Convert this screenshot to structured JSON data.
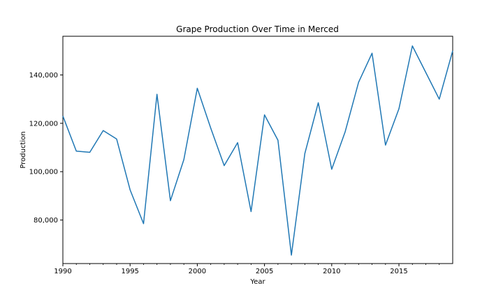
{
  "chart_data": {
    "type": "line",
    "title": "Grape Production Over Time in Merced",
    "xlabel": "Year",
    "ylabel": "Production",
    "xlim": [
      1990,
      2019
    ],
    "ylim": [
      62000,
      156000
    ],
    "x_ticks": [
      1990,
      1995,
      2000,
      2005,
      2010,
      2015
    ],
    "x_tick_labels": [
      "1990",
      "1995",
      "2000",
      "2005",
      "2010",
      "2015"
    ],
    "y_ticks": [
      80000,
      100000,
      120000,
      140000
    ],
    "y_tick_labels": [
      "80,000",
      "100,000",
      "120,000",
      "140,000"
    ],
    "grid": false,
    "legend": "none",
    "series": [
      {
        "color": "#1f77b4",
        "x": [
          1990,
          1991,
          1992,
          1993,
          1994,
          1995,
          1996,
          1997,
          1998,
          1999,
          2000,
          2001,
          2002,
          2003,
          2004,
          2005,
          2006,
          2007,
          2008,
          2009,
          2010,
          2011,
          2012,
          2013,
          2014,
          2015,
          2016,
          2017,
          2018,
          2019
        ],
        "y": [
          123000,
          108500,
          108000,
          117000,
          113500,
          92500,
          78500,
          132000,
          88000,
          105000,
          134500,
          118000,
          102500,
          112000,
          83500,
          123500,
          113000,
          65500,
          107500,
          128500,
          101000,
          116500,
          137000,
          149000,
          111000,
          126000,
          152000,
          141000,
          130000,
          150000
        ]
      }
    ]
  }
}
